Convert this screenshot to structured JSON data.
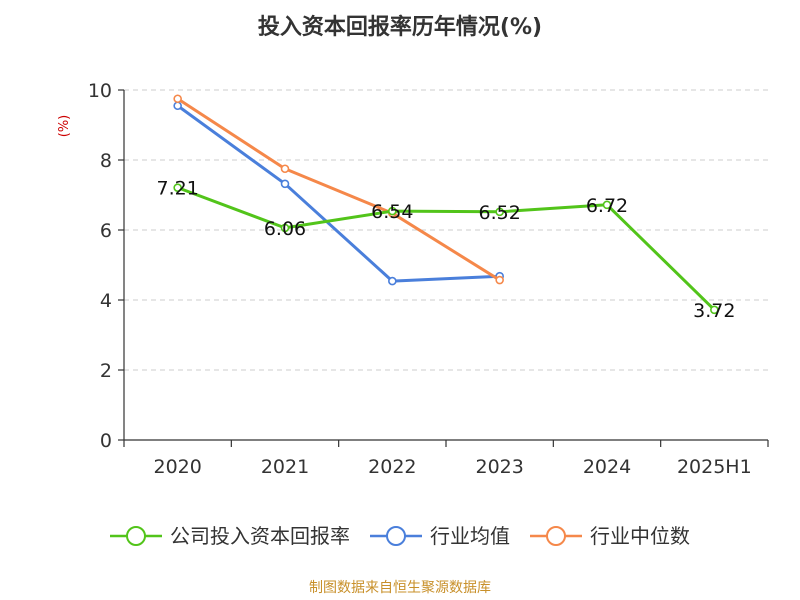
{
  "chart_data": {
    "type": "line",
    "title": "投入资本回报率历年情况(%)",
    "ylabel": "(%)",
    "xlabel": "",
    "categories": [
      "2020",
      "2021",
      "2022",
      "2023",
      "2024",
      "2025H1"
    ],
    "ylim": [
      0,
      10
    ],
    "yticks": [
      0,
      2,
      4,
      6,
      8,
      10
    ],
    "grid": true,
    "legend_position": "bottom",
    "series": [
      {
        "name": "公司投入资本回报率",
        "values": [
          7.21,
          6.06,
          6.54,
          6.52,
          6.72,
          3.72
        ],
        "labels": [
          "7.21",
          "6.06",
          "6.54",
          "6.52",
          "6.72",
          "3.72"
        ],
        "color": "#52c41a"
      },
      {
        "name": "行业均值",
        "values": [
          9.55,
          7.32,
          4.54,
          4.68,
          null,
          null
        ],
        "color": "#4a7fdb"
      },
      {
        "name": "行业中位数",
        "values": [
          9.75,
          7.75,
          6.48,
          4.57,
          null,
          null
        ],
        "color": "#f5884a"
      }
    ]
  },
  "source": "制图数据来自恒生聚源数据库"
}
